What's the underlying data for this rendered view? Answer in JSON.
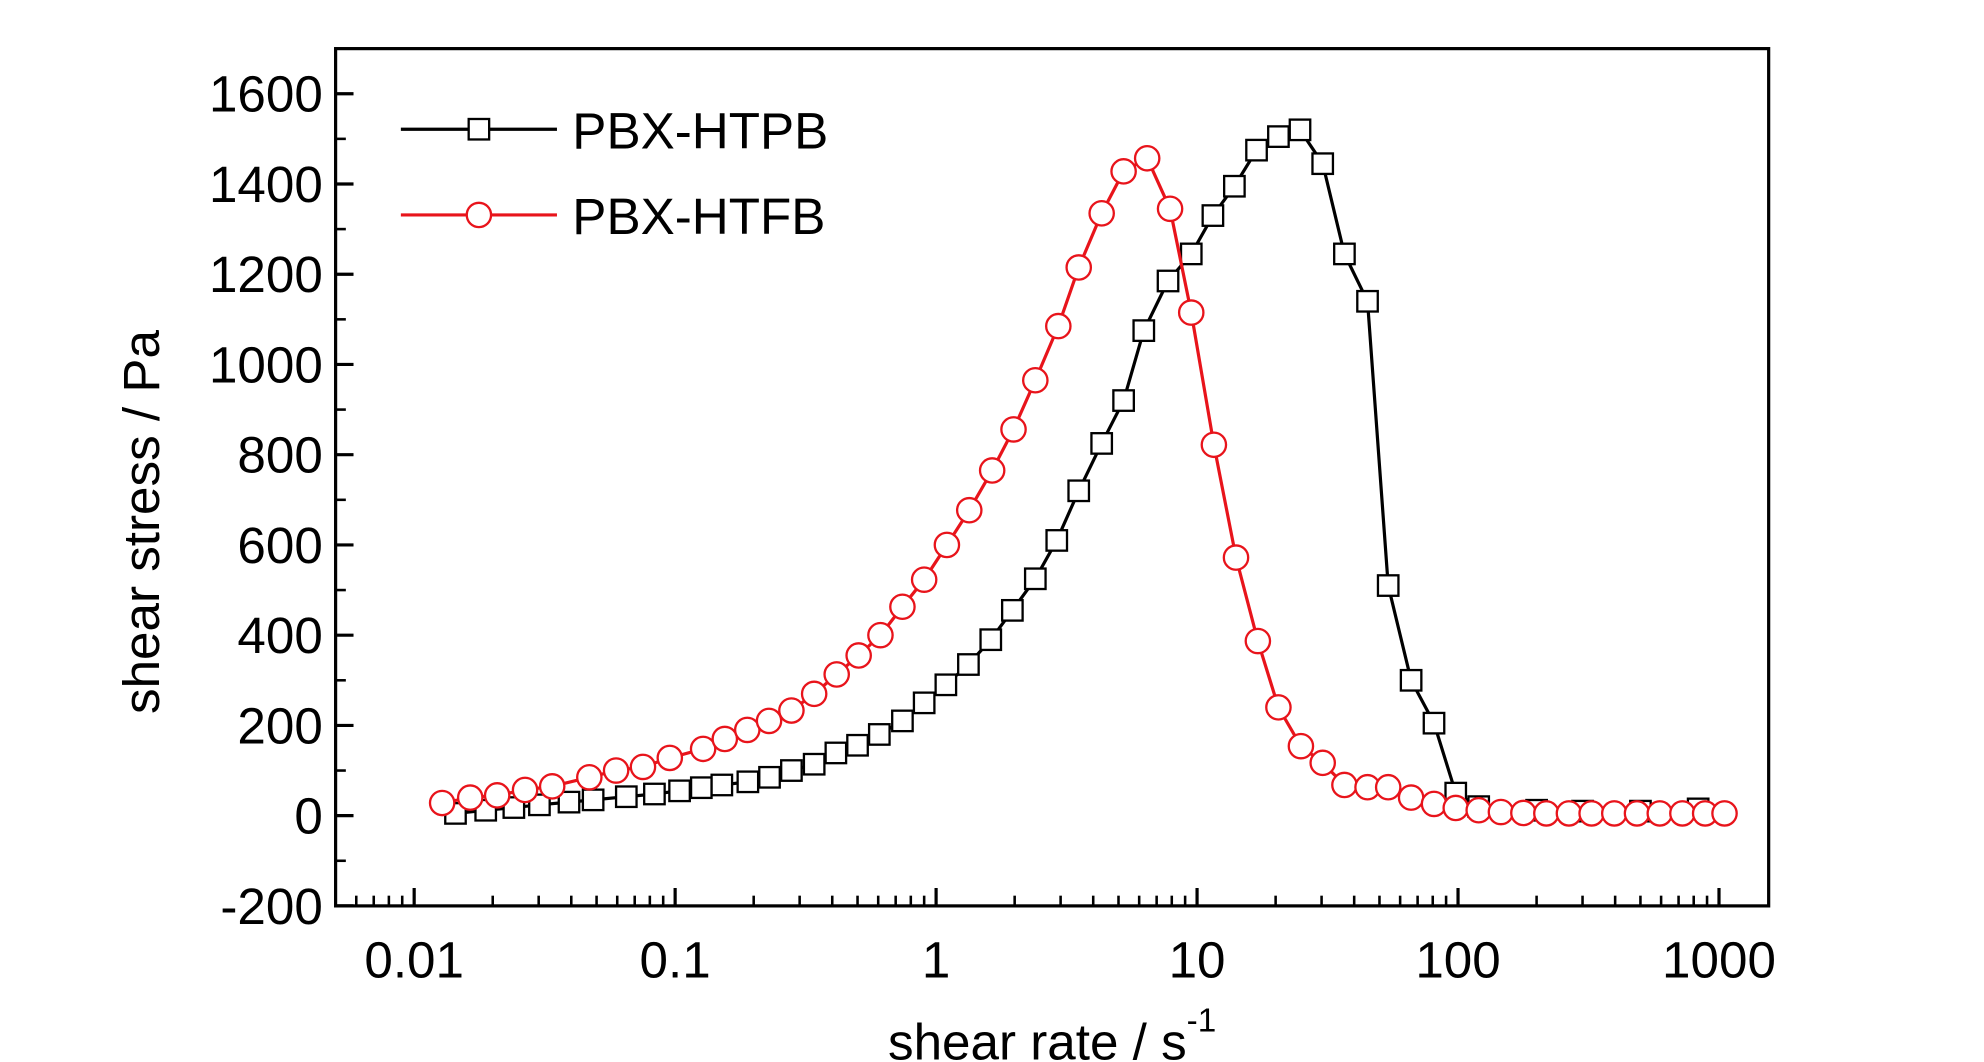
{
  "chart_data": {
    "type": "line",
    "xlabel": "shear rate / s",
    "xlabel_superscript": "-1",
    "ylabel": "shear stress / Pa",
    "xscale": "log",
    "xlim": [
      0.005,
      1550
    ],
    "xticks": [
      0.01,
      0.1,
      1,
      10,
      100,
      1000
    ],
    "ylim": [
      -200,
      1700
    ],
    "yticks": [
      -200,
      0,
      200,
      400,
      600,
      800,
      1000,
      1200,
      1400,
      1600
    ],
    "legend": "upper left",
    "series": [
      {
        "name": "PBX-HTPB",
        "color": "#000000",
        "marker": "square",
        "x": [
          0.0144,
          0.0188,
          0.0241,
          0.0302,
          0.0392,
          0.0485,
          0.065,
          0.0833,
          0.104,
          0.126,
          0.151,
          0.19,
          0.23,
          0.279,
          0.341,
          0.413,
          0.5,
          0.606,
          0.743,
          0.9,
          1.09,
          1.33,
          1.62,
          1.96,
          2.4,
          2.9,
          3.52,
          4.31,
          5.23,
          6.25,
          7.74,
          9.5,
          11.5,
          13.9,
          16.9,
          20.5,
          24.8,
          30.3,
          36.7,
          45,
          54,
          66.1,
          80.9,
          98,
          120,
          200,
          300,
          500,
          832
        ],
        "values": [
          5,
          12,
          18,
          24,
          30,
          35,
          42,
          48,
          55,
          62,
          68,
          75,
          85,
          100,
          114,
          139,
          156,
          180,
          210,
          250,
          290,
          335,
          390,
          455,
          525,
          610,
          720,
          825,
          920,
          1075,
          1185,
          1245,
          1330,
          1395,
          1475,
          1505,
          1520,
          1445,
          1245,
          1140,
          510,
          300,
          205,
          50,
          20,
          12,
          10,
          10,
          15
        ]
      },
      {
        "name": "PBX-HTFB",
        "color": "#e8141b",
        "marker": "circle",
        "x": [
          0.0128,
          0.0164,
          0.0208,
          0.0266,
          0.0338,
          0.0469,
          0.0594,
          0.0753,
          0.0954,
          0.128,
          0.155,
          0.189,
          0.229,
          0.279,
          0.341,
          0.416,
          0.505,
          0.612,
          0.743,
          0.9,
          1.1,
          1.34,
          1.64,
          1.98,
          2.4,
          2.94,
          3.52,
          4.31,
          5.23,
          6.44,
          7.88,
          9.5,
          11.6,
          14.1,
          17.1,
          20.5,
          25,
          30.3,
          36.7,
          45,
          54,
          66.1,
          80.9,
          98,
          120,
          146,
          178,
          218,
          266,
          325,
          397,
          485,
          593,
          724,
          885,
          1050
        ],
        "values": [
          28,
          40,
          45,
          57,
          65,
          85,
          100,
          108,
          128,
          148,
          170,
          190,
          210,
          233,
          270,
          313,
          355,
          400,
          463,
          523,
          600,
          677,
          765,
          856,
          965,
          1085,
          1215,
          1335,
          1428,
          1457,
          1345,
          1115,
          822,
          572,
          387,
          240,
          154,
          117,
          68,
          63,
          63,
          40,
          26,
          17,
          12,
          8,
          6,
          5,
          5,
          5,
          5,
          5,
          5,
          5,
          5,
          5
        ]
      }
    ]
  }
}
